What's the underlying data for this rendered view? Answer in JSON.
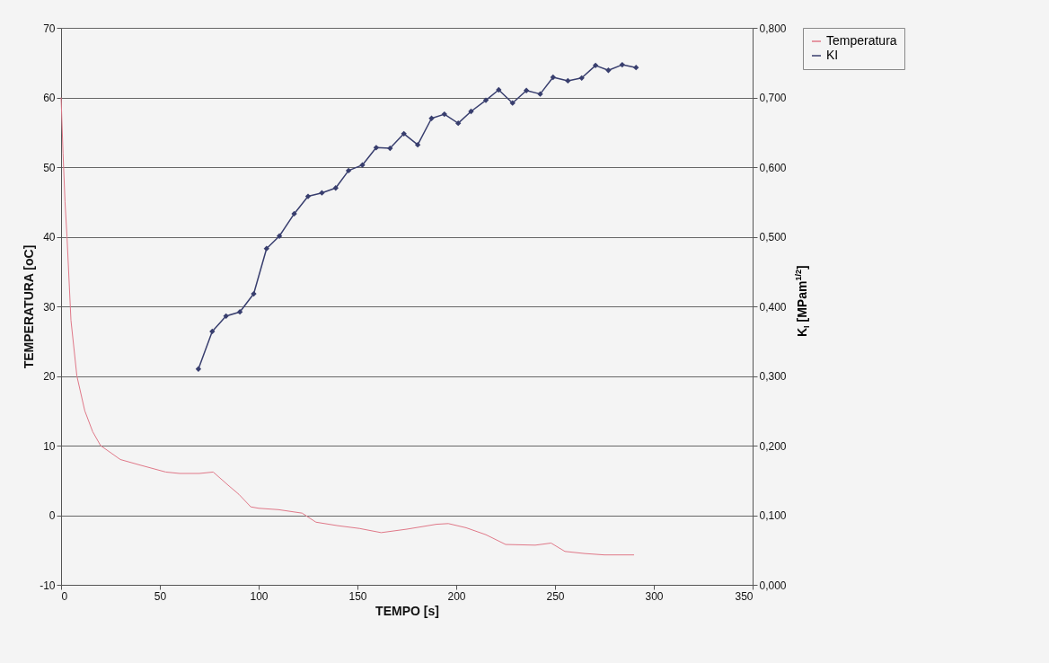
{
  "chart_data": {
    "type": "line",
    "xlabel": "TEMPO [s]",
    "ylabel": "TEMPERATURA [oC]",
    "y2label": "K$_{I}$ [MPam$^{1/2}$]",
    "xlim": [
      0,
      350
    ],
    "xticks": [
      0,
      50,
      100,
      150,
      200,
      250,
      300,
      350
    ],
    "ylim": [
      -10,
      70
    ],
    "yticks": [
      -10,
      0,
      10,
      20,
      30,
      40,
      50,
      60,
      70
    ],
    "y2lim": [
      0,
      0.8
    ],
    "y2ticks": [
      {
        "value": 0,
        "label": "0,000"
      },
      {
        "value": 0.1,
        "label": "0,100"
      },
      {
        "value": 0.2,
        "label": "0,200"
      },
      {
        "value": 0.3,
        "label": "0,300"
      },
      {
        "value": 0.4,
        "label": "0,400"
      },
      {
        "value": 0.5,
        "label": "0,500"
      },
      {
        "value": 0.6,
        "label": "0,600"
      },
      {
        "value": 0.7,
        "label": "0,700"
      },
      {
        "value": 0.8,
        "label": "0,800"
      }
    ],
    "grid": "y",
    "legend": "right",
    "series": [
      {
        "name": "Temperatura",
        "color": "#e07888",
        "marker": "none",
        "x": [
          0,
          1,
          2,
          3,
          5,
          8,
          12,
          16,
          20,
          25,
          30,
          40,
          53,
          60,
          70,
          77,
          85,
          90,
          96,
          100,
          110,
          122,
          129,
          140,
          151,
          162,
          175,
          190,
          196,
          205,
          215,
          225,
          240,
          248,
          255,
          265,
          275,
          290
        ],
        "values": [
          60,
          52,
          45,
          40,
          28,
          20,
          15,
          12,
          10,
          9,
          8,
          7.2,
          6.2,
          6,
          6,
          6.2,
          4.2,
          3,
          1.2,
          1,
          0.8,
          0.3,
          -1,
          -1.5,
          -1.9,
          -2.5,
          -2,
          -1.3,
          -1.2,
          -1.8,
          -2.8,
          -4.2,
          -4.3,
          -4,
          -5.2,
          -5.5,
          -5.7,
          -5.7
        ]
      },
      {
        "name": "KI",
        "color": "#383e6e",
        "marker": "diamond",
        "axis": "y2",
        "x": [
          69.5,
          76.5,
          83.5,
          90.5,
          97.5,
          104,
          110.5,
          118,
          125,
          132,
          139,
          145.5,
          152.5,
          159.5,
          166.5,
          173.5,
          180.5,
          187.5,
          194,
          201,
          207.5,
          215,
          221.5,
          228.5,
          235.5,
          242.5,
          249,
          256.5,
          263.5,
          270.5,
          277,
          284,
          291
        ],
        "values": [
          0.31,
          0.364,
          0.386,
          0.392,
          0.418,
          0.483,
          0.501,
          0.533,
          0.558,
          0.563,
          0.57,
          0.595,
          0.603,
          0.628,
          0.627,
          0.648,
          0.632,
          0.67,
          0.676,
          0.663,
          0.68,
          0.696,
          0.711,
          0.692,
          0.71,
          0.705,
          0.729,
          0.724,
          0.728,
          0.746,
          0.739,
          0.747,
          0.743
        ]
      }
    ]
  }
}
